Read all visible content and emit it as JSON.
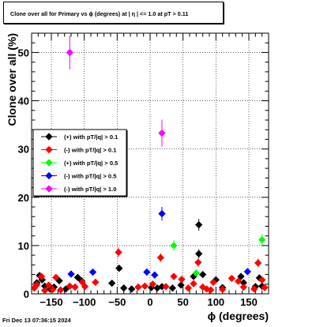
{
  "title": "Clone  over all for Primary vs ϕ (degrees) at |  η  | <= 1.0 at pT > 0.11",
  "footer": "Fri Dec 13 07:36:15 2024",
  "chart_data": {
    "type": "scatter",
    "xlabel": "ϕ (degrees)",
    "ylabel": "Clone  over all (%)",
    "xlim": [
      -180,
      180
    ],
    "ylim": [
      0,
      54
    ],
    "xticks": [
      -150,
      -100,
      -50,
      0,
      50,
      100,
      150
    ],
    "yticks": [
      0,
      10,
      20,
      30,
      40,
      50
    ],
    "grid": true,
    "legend_position": "left-middle",
    "series": [
      {
        "name": "(+) with pT/|q| > 0.1",
        "color": "#000000",
        "points": [
          {
            "x": -172,
            "y": 2.3,
            "err": 0.6
          },
          {
            "x": -168,
            "y": 3.8,
            "err": 0.7
          },
          {
            "x": -164,
            "y": 2.9,
            "err": 0.6
          },
          {
            "x": -160,
            "y": 1.6,
            "err": 0.5
          },
          {
            "x": -152,
            "y": 1.0,
            "err": 0.4
          },
          {
            "x": -146,
            "y": 1.4,
            "err": 0.4
          },
          {
            "x": -138,
            "y": 2.7,
            "err": 0.6
          },
          {
            "x": -128,
            "y": 1.0,
            "err": 0.4
          },
          {
            "x": -110,
            "y": 3.4,
            "err": 0.6
          },
          {
            "x": -104,
            "y": 2.7,
            "err": 0.6
          },
          {
            "x": -58,
            "y": 2.2,
            "err": 0.5
          },
          {
            "x": -47,
            "y": 5.3,
            "err": 0.7
          },
          {
            "x": -40,
            "y": 1.2,
            "err": 0.4
          },
          {
            "x": -28,
            "y": 1.0,
            "err": 0.4
          },
          {
            "x": 2,
            "y": 1.3,
            "err": 0.4
          },
          {
            "x": 11,
            "y": 1.2,
            "err": 0.4
          },
          {
            "x": 18,
            "y": 1.5,
            "err": 0.4
          },
          {
            "x": 34,
            "y": 1.2,
            "err": 0.4
          },
          {
            "x": 47,
            "y": 1.8,
            "err": 0.5
          },
          {
            "x": 66,
            "y": 3.6,
            "err": 0.6
          },
          {
            "x": 74,
            "y": 14.3,
            "err": 1.2
          },
          {
            "x": 74,
            "y": 8.3,
            "err": 0.9
          },
          {
            "x": 80,
            "y": 4.0,
            "err": 0.6
          },
          {
            "x": 100,
            "y": 2.9,
            "err": 0.6
          },
          {
            "x": 110,
            "y": 1.3,
            "err": 0.4
          },
          {
            "x": 138,
            "y": 3.6,
            "err": 0.6
          },
          {
            "x": 142,
            "y": 2.3,
            "err": 0.5
          },
          {
            "x": 160,
            "y": 1.5,
            "err": 0.4
          },
          {
            "x": 166,
            "y": 3.3,
            "err": 0.6
          },
          {
            "x": 170,
            "y": 1.6,
            "err": 0.4
          }
        ]
      },
      {
        "name": "(-) with pT/|q| > 0.1",
        "color": "#ff0000",
        "points": [
          {
            "x": -176,
            "y": 1.2,
            "err": 0.4
          },
          {
            "x": -172,
            "y": 1.9,
            "err": 0.5
          },
          {
            "x": -165,
            "y": 3.6,
            "err": 0.6
          },
          {
            "x": -160,
            "y": 0.7,
            "err": 0.3
          },
          {
            "x": -154,
            "y": 1.8,
            "err": 0.5
          },
          {
            "x": -148,
            "y": 0.9,
            "err": 0.4
          },
          {
            "x": -143,
            "y": 3.4,
            "err": 0.6
          },
          {
            "x": -136,
            "y": 0.8,
            "err": 0.3
          },
          {
            "x": -122,
            "y": 1.6,
            "err": 0.4
          },
          {
            "x": -114,
            "y": 1.4,
            "err": 0.4
          },
          {
            "x": -103,
            "y": 2.4,
            "err": 0.5
          },
          {
            "x": -99,
            "y": 1.5,
            "err": 0.4
          },
          {
            "x": -83,
            "y": 2.4,
            "err": 0.5
          },
          {
            "x": -48,
            "y": 8.6,
            "err": 1.0
          },
          {
            "x": -18,
            "y": 1.4,
            "err": 0.4
          },
          {
            "x": -8,
            "y": 1.6,
            "err": 0.4
          },
          {
            "x": 4,
            "y": 2.0,
            "err": 0.5
          },
          {
            "x": 16,
            "y": 7.5,
            "err": 0.9
          },
          {
            "x": 24,
            "y": 1.5,
            "err": 0.4
          },
          {
            "x": 36,
            "y": 3.6,
            "err": 0.6
          },
          {
            "x": 48,
            "y": 3.0,
            "err": 0.6
          },
          {
            "x": 58,
            "y": 1.2,
            "err": 0.4
          },
          {
            "x": 66,
            "y": 2.1,
            "err": 0.5
          },
          {
            "x": 73,
            "y": 6.5,
            "err": 0.9
          },
          {
            "x": 80,
            "y": 1.4,
            "err": 0.4
          },
          {
            "x": 86,
            "y": 1.0,
            "err": 0.4
          },
          {
            "x": 92,
            "y": 0.8,
            "err": 0.3
          },
          {
            "x": 96,
            "y": 2.4,
            "err": 0.5
          },
          {
            "x": 110,
            "y": 0.9,
            "err": 0.3
          },
          {
            "x": 124,
            "y": 3.2,
            "err": 0.6
          },
          {
            "x": 134,
            "y": 2.6,
            "err": 0.5
          },
          {
            "x": 142,
            "y": 1.4,
            "err": 0.4
          },
          {
            "x": 158,
            "y": 1.0,
            "err": 0.4
          },
          {
            "x": 164,
            "y": 6.4,
            "err": 0.9
          },
          {
            "x": 170,
            "y": 2.9,
            "err": 0.6
          },
          {
            "x": 174,
            "y": 1.3,
            "err": 0.4
          }
        ]
      },
      {
        "name": "(+) with pT/|q| > 0.5",
        "color": "#00ff00",
        "points": [
          {
            "x": 36,
            "y": 10.0,
            "err": 1.1
          },
          {
            "x": 70,
            "y": 4.3,
            "err": 0.7
          },
          {
            "x": 170,
            "y": 11.2,
            "err": 1.2
          }
        ]
      },
      {
        "name": "(-) with pT/|q| > 0.5",
        "color": "#0000ff",
        "points": [
          {
            "x": -120,
            "y": 4.1,
            "err": 0.7
          },
          {
            "x": -87,
            "y": 4.5,
            "err": 0.7
          },
          {
            "x": -5,
            "y": 4.5,
            "err": 0.7
          },
          {
            "x": 7,
            "y": 3.9,
            "err": 0.7
          },
          {
            "x": 18,
            "y": 16.6,
            "err": 1.4
          },
          {
            "x": 148,
            "y": 4.6,
            "err": 0.7
          }
        ]
      },
      {
        "name": "(-) with pT/|q| > 1.0",
        "color": "#ff00ff",
        "points": [
          {
            "x": -122,
            "y": 50.0,
            "err": 3.5
          },
          {
            "x": 18,
            "y": 33.3,
            "err": 2.8
          }
        ]
      }
    ]
  }
}
